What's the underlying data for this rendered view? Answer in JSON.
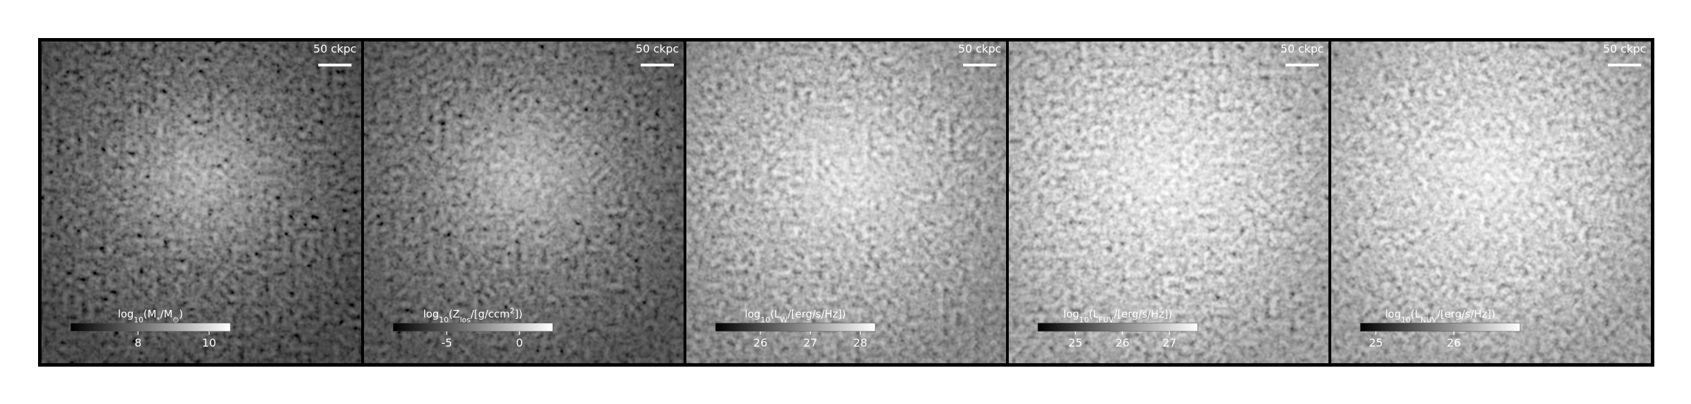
{
  "chart_data": [
    {
      "type": "image",
      "colormap": "gray",
      "scale_bar": "50 ckpc",
      "colorbar": {
        "label": [
          {
            "text": "log"
          },
          {
            "text": "10",
            "script": "sub"
          },
          {
            "text": "(M"
          },
          {
            "text": "*",
            "script": "sub"
          },
          {
            "text": "/M"
          },
          {
            "text": "⊙",
            "script": "sub"
          },
          {
            "text": ")"
          }
        ],
        "clim": [
          6.1,
          10.6
        ],
        "ticks": [
          8,
          10
        ]
      }
    },
    {
      "type": "image",
      "colormap": "gray",
      "scale_bar": "50 ckpc",
      "colorbar": {
        "label": [
          {
            "text": "log"
          },
          {
            "text": "10",
            "script": "sub"
          },
          {
            "text": "(Z"
          },
          {
            "text": "los",
            "script": "sub"
          },
          {
            "text": "/[g/ccm"
          },
          {
            "text": "2",
            "script": "super"
          },
          {
            "text": "])"
          }
        ],
        "clim": [
          -8.7,
          2.3
        ],
        "ticks": [
          -5,
          0
        ]
      }
    },
    {
      "type": "image",
      "colormap": "gray",
      "scale_bar": "50 ckpc",
      "colorbar": {
        "label": [
          {
            "text": "log"
          },
          {
            "text": "10",
            "script": "sub"
          },
          {
            "text": "(L"
          },
          {
            "text": "W",
            "script": "sub"
          },
          {
            "text": "/[erg/s/Hz])"
          }
        ],
        "clim": [
          25.1,
          28.3
        ],
        "ticks": [
          26,
          27,
          28
        ]
      }
    },
    {
      "type": "image",
      "colormap": "gray",
      "scale_bar": "50 ckpc",
      "colorbar": {
        "label": [
          {
            "text": "log"
          },
          {
            "text": "10",
            "script": "sub"
          },
          {
            "text": "(L"
          },
          {
            "text": "FUV",
            "script": "sub"
          },
          {
            "text": "/[erg/s/Hz])"
          }
        ],
        "clim": [
          24.2,
          27.6
        ],
        "ticks": [
          25,
          26,
          27
        ]
      }
    },
    {
      "type": "image",
      "colormap": "gray",
      "scale_bar": "50 ckpc",
      "colorbar": {
        "label": [
          {
            "text": "log"
          },
          {
            "text": "10",
            "script": "sub"
          },
          {
            "text": "(L"
          },
          {
            "text": "NUV",
            "script": "sub"
          },
          {
            "text": "/[erg/s/Hz])"
          }
        ],
        "clim": [
          24.8,
          26.85
        ],
        "ticks": [
          25,
          26
        ]
      }
    }
  ]
}
